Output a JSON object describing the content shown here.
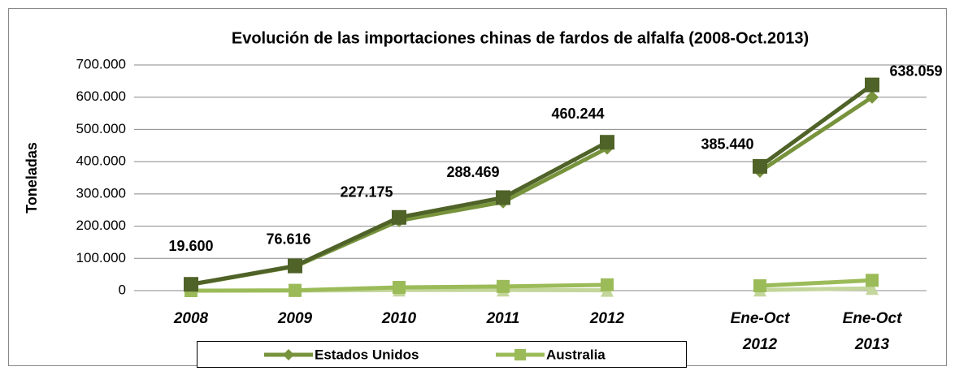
{
  "chart_data": {
    "type": "line",
    "title": "Evolución de las importaciones chinas de fardos de alfalfa (2008-Oct.2013)",
    "y_label": "Toneladas",
    "categories": [
      "2008",
      "2009",
      "2010",
      "2011",
      "2012",
      null,
      "Ene-Oct 2012",
      "Ene-Oct 2013"
    ],
    "series": [
      {
        "color": "#4f6228",
        "marker": "square",
        "values": [
          19600,
          76616,
          227175,
          288469,
          460244,
          null,
          385440,
          638059
        ],
        "value_labels": [
          "19.600",
          "76.616",
          "227.175",
          "288.469",
          "460.244",
          null,
          "385.440",
          "638.059"
        ]
      },
      {
        "name": "Estados Unidos",
        "color": "#77933c",
        "marker": "diamond",
        "values": [
          19000,
          75000,
          217000,
          275000,
          442000,
          null,
          370000,
          600000
        ]
      },
      {
        "name": "Australia",
        "color": "#9bbb59",
        "marker": "square",
        "values": [
          0,
          1000,
          10000,
          13000,
          18000,
          null,
          15000,
          32000
        ]
      },
      {
        "color": "#c3d69b",
        "marker": "triangle",
        "values": [
          0,
          0,
          2000,
          2000,
          1000,
          null,
          2000,
          7000
        ]
      }
    ],
    "ylim": [
      0,
      700000
    ],
    "yticks": [
      0,
      {
        "value": 100000,
        "label": "100.000"
      },
      {
        "value": 200000,
        "label": "200.000"
      },
      {
        "value": 300000,
        "label": "300.000"
      },
      {
        "value": 400000,
        "label": "400.000"
      },
      {
        "value": 500000,
        "label": "500.000"
      },
      {
        "value": 600000,
        "label": "600.000"
      },
      {
        "value": 700000,
        "label": "700.000"
      }
    ],
    "grid": true
  }
}
